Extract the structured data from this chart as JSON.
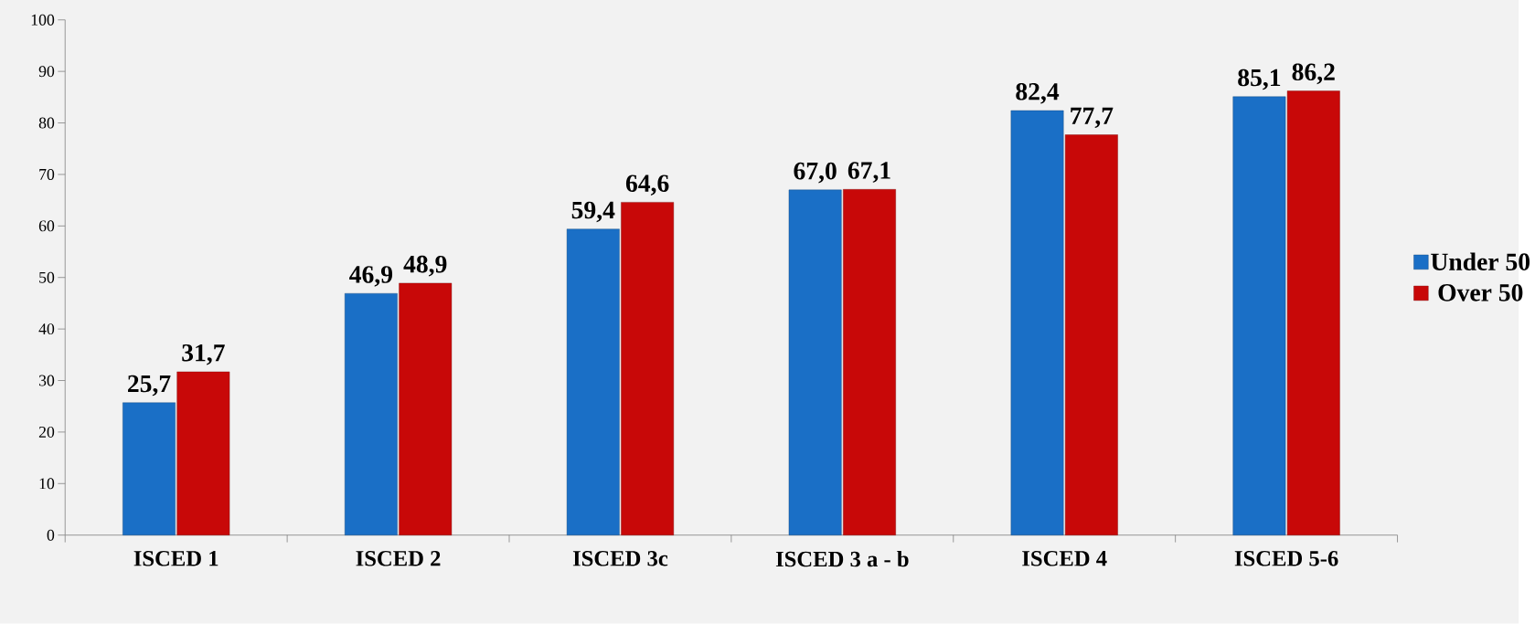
{
  "chart_data": {
    "type": "bar",
    "categories": [
      "ISCED 1",
      "ISCED 2",
      "ISCED 3c",
      "ISCED 3 a - b",
      "ISCED 4",
      "ISCED 5-6"
    ],
    "series": [
      {
        "name": "Under 50",
        "color": "#1a6fc6",
        "values": [
          25.7,
          46.9,
          59.4,
          67.0,
          82.4,
          85.1
        ],
        "value_labels": [
          "25,7",
          "46,9",
          "59,4",
          "67,0",
          "82,4",
          "85,1"
        ]
      },
      {
        "name": "Over 50",
        "color": "#c80808",
        "values": [
          31.7,
          48.9,
          64.6,
          67.1,
          77.7,
          86.2
        ],
        "value_labels": [
          "31,7",
          "48,9",
          "64,6",
          "67,1",
          "77,7",
          "86,2"
        ]
      }
    ],
    "ylim": [
      0,
      100
    ],
    "yticks": [
      0,
      10,
      20,
      30,
      40,
      50,
      60,
      70,
      80,
      90,
      100
    ],
    "grid": false,
    "legend": "right"
  }
}
